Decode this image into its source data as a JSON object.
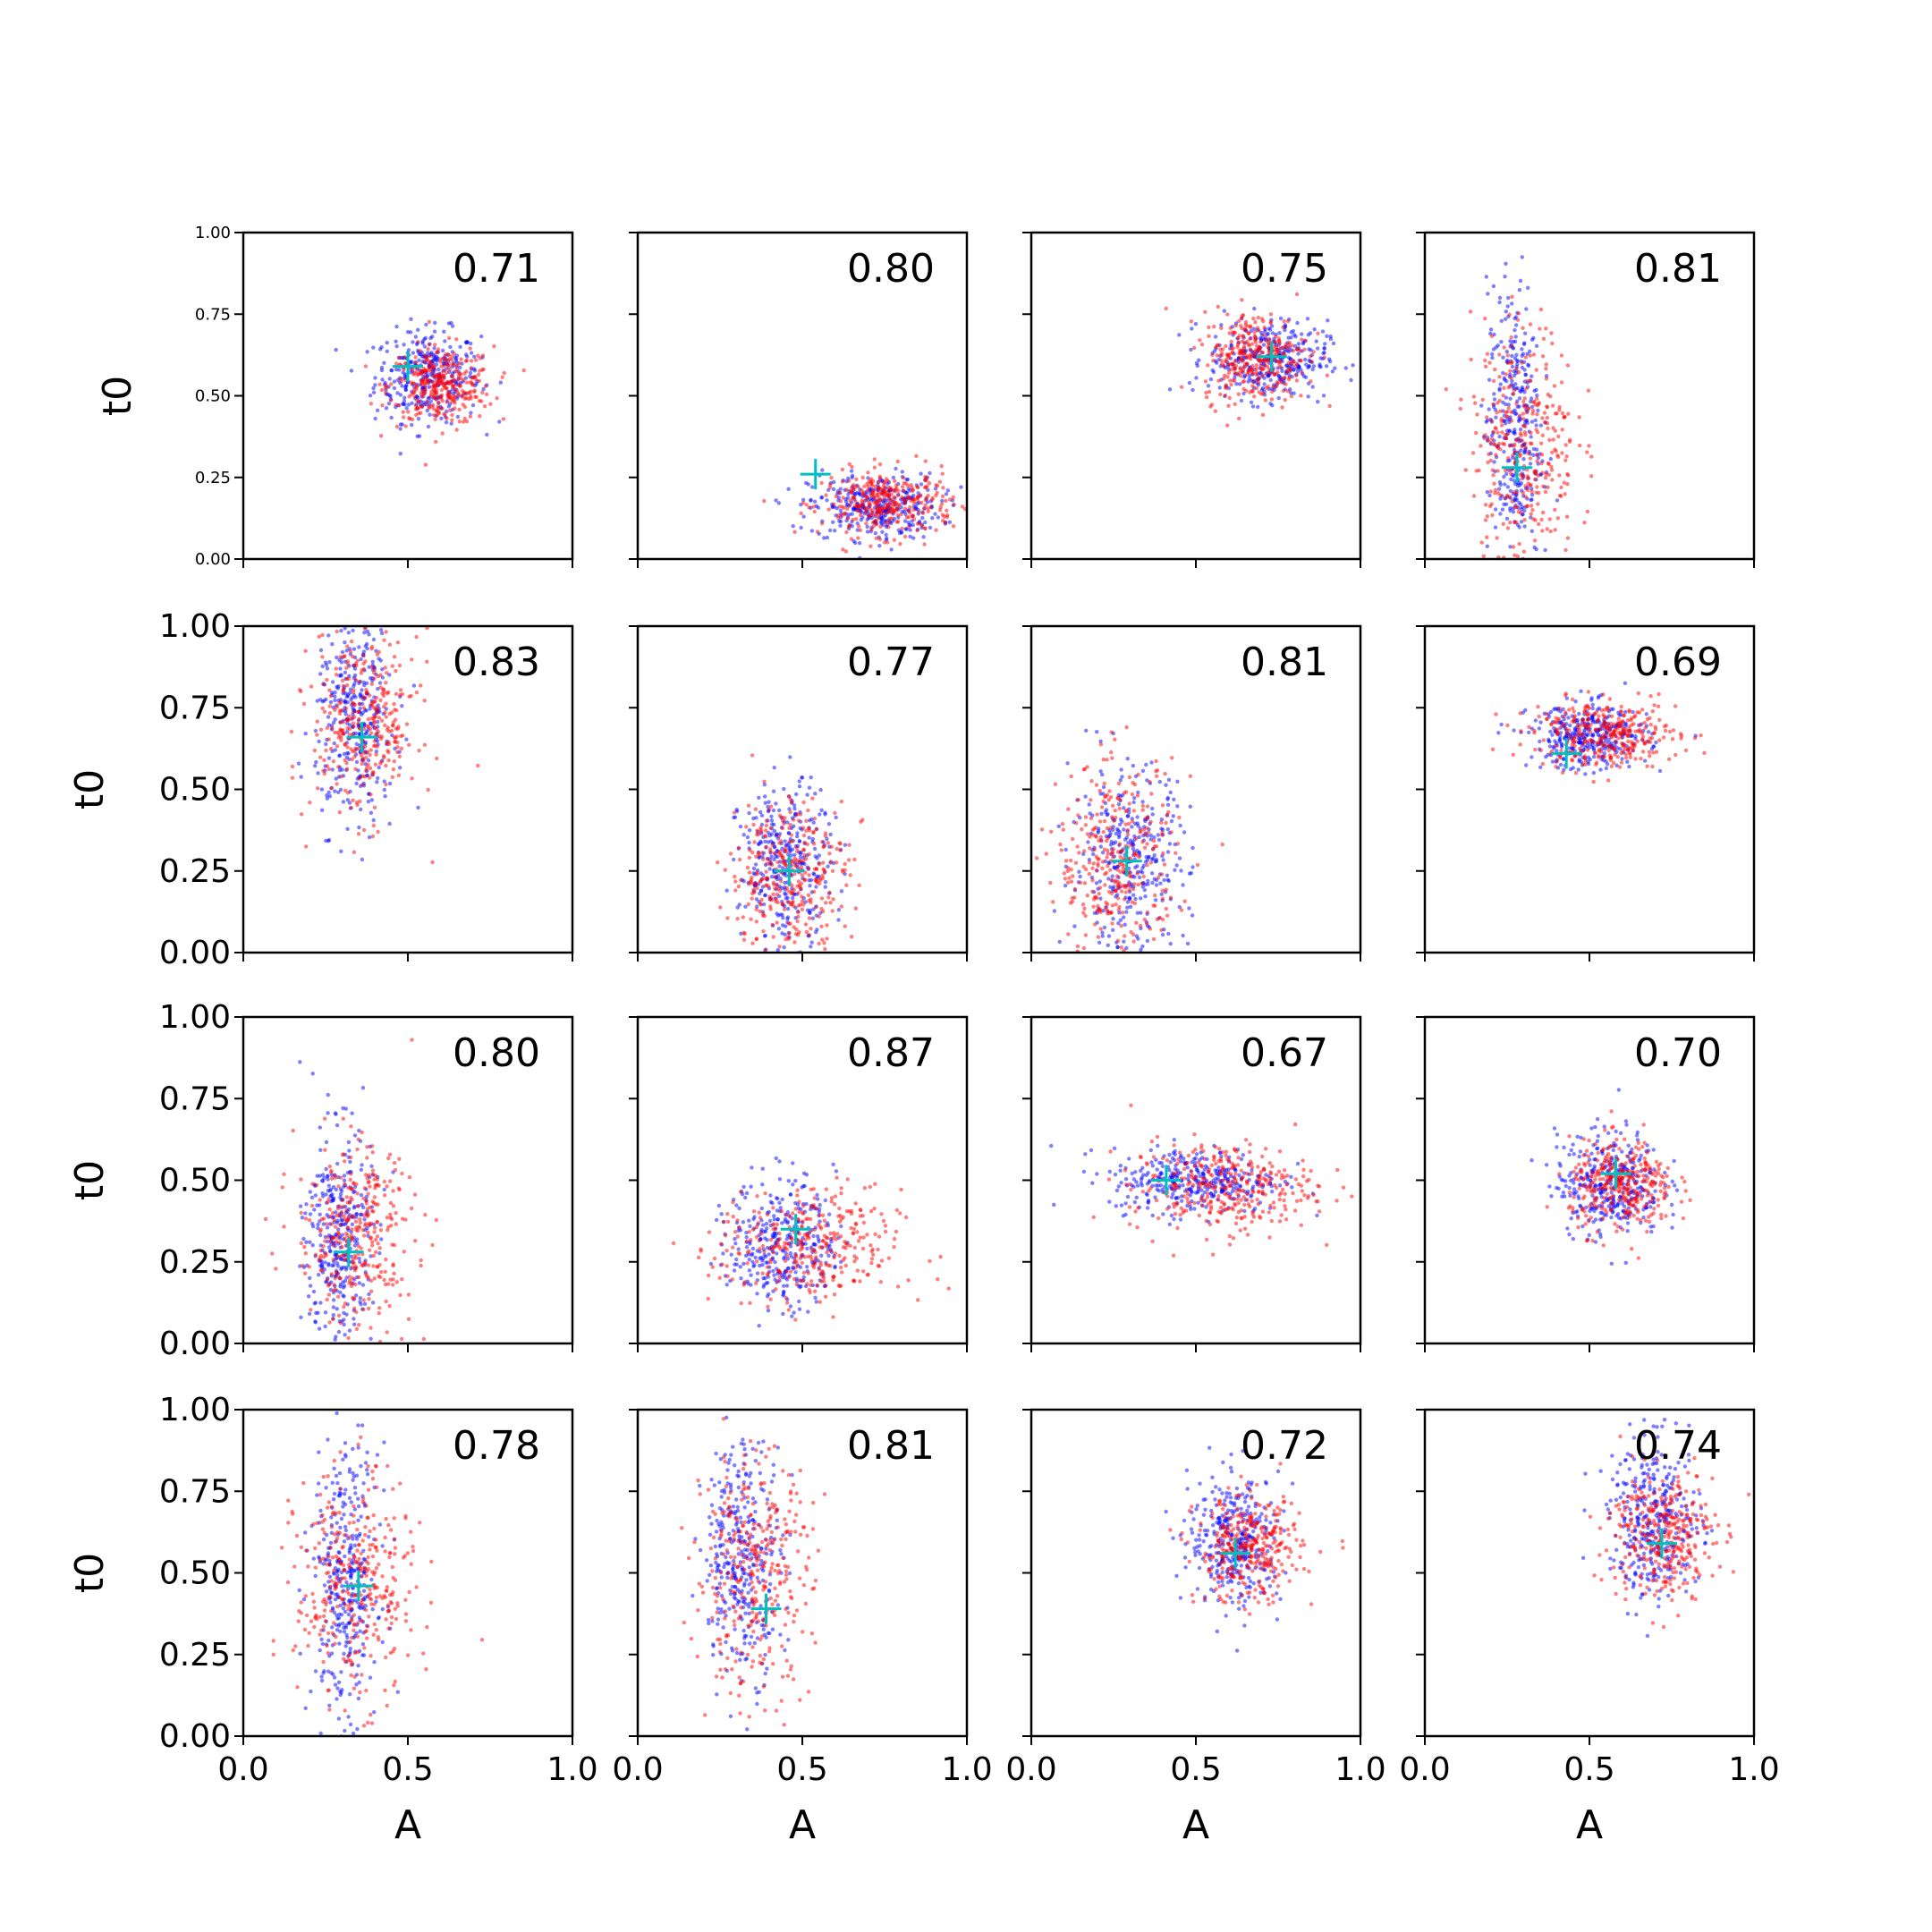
{
  "figure": {
    "ylabel": "t0",
    "xlabel": "A",
    "xticks": [
      "0.0",
      "0.5",
      "1.0"
    ],
    "yticks": [
      "0.00",
      "0.25",
      "0.50",
      "0.75",
      "1.00"
    ],
    "colors": {
      "series_a": "#0000ff",
      "series_b": "#ff0000",
      "marker": "#00bfbf",
      "axes": "#000000"
    }
  },
  "chart_data": [
    {
      "type": "scatter",
      "row": 1,
      "col": 1,
      "annotation": "0.71",
      "xlim": [
        0,
        1
      ],
      "ylim": [
        0,
        1
      ],
      "marker": {
        "x": 0.5,
        "y": 0.59
      },
      "clusters": [
        {
          "color": "#0000ff",
          "center": [
            0.56,
            0.56
          ],
          "spread": [
            0.08,
            0.07
          ]
        },
        {
          "color": "#ff0000",
          "center": [
            0.6,
            0.53
          ],
          "spread": [
            0.08,
            0.06
          ]
        }
      ]
    },
    {
      "type": "scatter",
      "row": 1,
      "col": 2,
      "annotation": "0.80",
      "xlim": [
        0,
        1
      ],
      "ylim": [
        0,
        1
      ],
      "marker": {
        "x": 0.54,
        "y": 0.26
      },
      "clusters": [
        {
          "color": "#0000ff",
          "center": [
            0.72,
            0.16
          ],
          "spread": [
            0.1,
            0.05
          ]
        },
        {
          "color": "#ff0000",
          "center": [
            0.76,
            0.17
          ],
          "spread": [
            0.1,
            0.05
          ]
        }
      ]
    },
    {
      "type": "scatter",
      "row": 1,
      "col": 3,
      "annotation": "0.75",
      "xlim": [
        0,
        1
      ],
      "ylim": [
        0,
        1
      ],
      "marker": {
        "x": 0.73,
        "y": 0.62
      },
      "clusters": [
        {
          "color": "#0000ff",
          "center": [
            0.72,
            0.61
          ],
          "spread": [
            0.09,
            0.06
          ]
        },
        {
          "color": "#ff0000",
          "center": [
            0.68,
            0.62
          ],
          "spread": [
            0.08,
            0.07
          ]
        }
      ]
    },
    {
      "type": "scatter",
      "row": 1,
      "col": 4,
      "annotation": "0.81",
      "xlim": [
        0,
        1
      ],
      "ylim": [
        0,
        1
      ],
      "marker": {
        "x": 0.28,
        "y": 0.28
      },
      "clusters": [
        {
          "color": "#0000ff",
          "center": [
            0.27,
            0.4
          ],
          "spread": [
            0.04,
            0.22
          ]
        },
        {
          "color": "#ff0000",
          "center": [
            0.3,
            0.36
          ],
          "spread": [
            0.08,
            0.18
          ]
        }
      ]
    },
    {
      "type": "scatter",
      "row": 2,
      "col": 1,
      "annotation": "0.83",
      "xlim": [
        0,
        1
      ],
      "ylim": [
        0,
        1
      ],
      "marker": {
        "x": 0.36,
        "y": 0.66
      },
      "clusters": [
        {
          "color": "#0000ff",
          "center": [
            0.34,
            0.72
          ],
          "spread": [
            0.06,
            0.16
          ]
        },
        {
          "color": "#ff0000",
          "center": [
            0.37,
            0.7
          ],
          "spread": [
            0.08,
            0.14
          ]
        }
      ]
    },
    {
      "type": "scatter",
      "row": 2,
      "col": 2,
      "annotation": "0.77",
      "xlim": [
        0,
        1
      ],
      "ylim": [
        0,
        1
      ],
      "marker": {
        "x": 0.46,
        "y": 0.25
      },
      "clusters": [
        {
          "color": "#0000ff",
          "center": [
            0.45,
            0.27
          ],
          "spread": [
            0.07,
            0.12
          ]
        },
        {
          "color": "#ff0000",
          "center": [
            0.46,
            0.24
          ],
          "spread": [
            0.09,
            0.12
          ]
        }
      ]
    },
    {
      "type": "scatter",
      "row": 2,
      "col": 3,
      "annotation": "0.81",
      "xlim": [
        0,
        1
      ],
      "ylim": [
        0,
        1
      ],
      "marker": {
        "x": 0.29,
        "y": 0.28
      },
      "clusters": [
        {
          "color": "#0000ff",
          "center": [
            0.3,
            0.28
          ],
          "spread": [
            0.09,
            0.14
          ]
        },
        {
          "color": "#ff0000",
          "center": [
            0.26,
            0.28
          ],
          "spread": [
            0.09,
            0.15
          ]
        }
      ]
    },
    {
      "type": "scatter",
      "row": 2,
      "col": 4,
      "annotation": "0.69",
      "xlim": [
        0,
        1
      ],
      "ylim": [
        0,
        1
      ],
      "marker": {
        "x": 0.43,
        "y": 0.61
      },
      "clusters": [
        {
          "color": "#0000ff",
          "center": [
            0.5,
            0.66
          ],
          "spread": [
            0.09,
            0.05
          ]
        },
        {
          "color": "#ff0000",
          "center": [
            0.55,
            0.67
          ],
          "spread": [
            0.11,
            0.05
          ]
        }
      ]
    },
    {
      "type": "scatter",
      "row": 3,
      "col": 1,
      "annotation": "0.80",
      "xlim": [
        0,
        1
      ],
      "ylim": [
        0,
        1
      ],
      "marker": {
        "x": 0.32,
        "y": 0.28
      },
      "clusters": [
        {
          "color": "#0000ff",
          "center": [
            0.29,
            0.32
          ],
          "spread": [
            0.05,
            0.17
          ]
        },
        {
          "color": "#ff0000",
          "center": [
            0.34,
            0.33
          ],
          "spread": [
            0.09,
            0.14
          ]
        }
      ]
    },
    {
      "type": "scatter",
      "row": 3,
      "col": 2,
      "annotation": "0.87",
      "xlim": [
        0,
        1
      ],
      "ylim": [
        0,
        1
      ],
      "marker": {
        "x": 0.48,
        "y": 0.35
      },
      "clusters": [
        {
          "color": "#0000ff",
          "center": [
            0.44,
            0.31
          ],
          "spread": [
            0.08,
            0.1
          ]
        },
        {
          "color": "#ff0000",
          "center": [
            0.52,
            0.29
          ],
          "spread": [
            0.14,
            0.09
          ]
        }
      ]
    },
    {
      "type": "scatter",
      "row": 3,
      "col": 3,
      "annotation": "0.67",
      "xlim": [
        0,
        1
      ],
      "ylim": [
        0,
        1
      ],
      "marker": {
        "x": 0.41,
        "y": 0.5
      },
      "clusters": [
        {
          "color": "#0000ff",
          "center": [
            0.5,
            0.5
          ],
          "spread": [
            0.13,
            0.05
          ]
        },
        {
          "color": "#ff0000",
          "center": [
            0.58,
            0.48
          ],
          "spread": [
            0.14,
            0.07
          ]
        }
      ]
    },
    {
      "type": "scatter",
      "row": 3,
      "col": 4,
      "annotation": "0.70",
      "xlim": [
        0,
        1
      ],
      "ylim": [
        0,
        1
      ],
      "marker": {
        "x": 0.58,
        "y": 0.52
      },
      "clusters": [
        {
          "color": "#0000ff",
          "center": [
            0.56,
            0.49
          ],
          "spread": [
            0.08,
            0.08
          ]
        },
        {
          "color": "#ff0000",
          "center": [
            0.6,
            0.48
          ],
          "spread": [
            0.08,
            0.07
          ]
        }
      ]
    },
    {
      "type": "scatter",
      "row": 4,
      "col": 1,
      "annotation": "0.78",
      "xlim": [
        0,
        1
      ],
      "ylim": [
        0,
        1
      ],
      "marker": {
        "x": 0.35,
        "y": 0.46
      },
      "clusters": [
        {
          "color": "#0000ff",
          "center": [
            0.31,
            0.48
          ],
          "spread": [
            0.05,
            0.2
          ]
        },
        {
          "color": "#ff0000",
          "center": [
            0.34,
            0.45
          ],
          "spread": [
            0.09,
            0.17
          ]
        }
      ]
    },
    {
      "type": "scatter",
      "row": 4,
      "col": 2,
      "annotation": "0.81",
      "xlim": [
        0,
        1
      ],
      "ylim": [
        0,
        1
      ],
      "marker": {
        "x": 0.39,
        "y": 0.39
      },
      "clusters": [
        {
          "color": "#0000ff",
          "center": [
            0.32,
            0.55
          ],
          "spread": [
            0.06,
            0.18
          ]
        },
        {
          "color": "#ff0000",
          "center": [
            0.35,
            0.5
          ],
          "spread": [
            0.09,
            0.18
          ]
        }
      ]
    },
    {
      "type": "scatter",
      "row": 4,
      "col": 3,
      "annotation": "0.72",
      "xlim": [
        0,
        1
      ],
      "ylim": [
        0,
        1
      ],
      "marker": {
        "x": 0.62,
        "y": 0.56
      },
      "clusters": [
        {
          "color": "#0000ff",
          "center": [
            0.62,
            0.6
          ],
          "spread": [
            0.07,
            0.1
          ]
        },
        {
          "color": "#ff0000",
          "center": [
            0.66,
            0.57
          ],
          "spread": [
            0.08,
            0.08
          ]
        }
      ]
    },
    {
      "type": "scatter",
      "row": 4,
      "col": 4,
      "annotation": "0.74",
      "xlim": [
        0,
        1
      ],
      "ylim": [
        0,
        1
      ],
      "marker": {
        "x": 0.72,
        "y": 0.59
      },
      "clusters": [
        {
          "color": "#0000ff",
          "center": [
            0.7,
            0.66
          ],
          "spread": [
            0.07,
            0.12
          ]
        },
        {
          "color": "#ff0000",
          "center": [
            0.72,
            0.62
          ],
          "spread": [
            0.08,
            0.1
          ]
        }
      ]
    }
  ]
}
